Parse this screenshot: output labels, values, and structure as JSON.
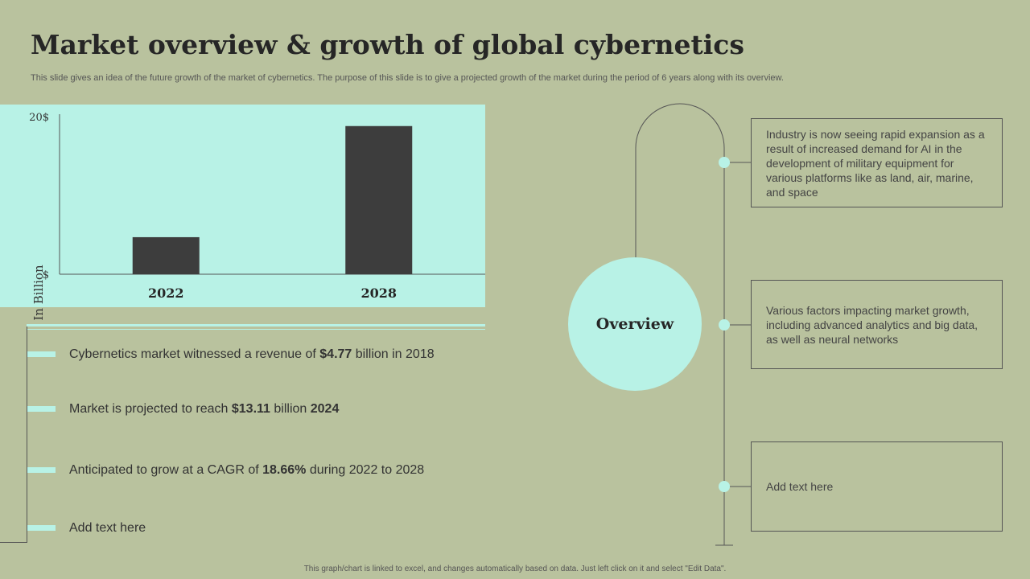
{
  "title": "Market overview & growth of global cybernetics",
  "subtitle": "This slide gives an idea of the future growth of the market of cybernetics. The purpose of this slide is to give a projected growth of the market during the period of 6 years along with its overview.",
  "chart_data": {
    "type": "bar",
    "categories": [
      "2022",
      "2028"
    ],
    "values": [
      4.7,
      18.8
    ],
    "ylabel": "In Billion",
    "ylim": [
      0,
      20
    ],
    "y_tick_labels": [
      "$",
      "20$"
    ],
    "bar_color": "#3d3d3d",
    "background": "#b8f2e6"
  },
  "bullets": [
    {
      "pre": "Cybernetics market witnessed a revenue  of ",
      "bold1": "$4.77",
      "mid": " billion in 2018",
      "bold2": "",
      "post": ""
    },
    {
      "pre": "Market is projected to reach ",
      "bold1": "$13.11",
      "mid": " billion ",
      "bold2": "2024",
      "post": ""
    },
    {
      "pre": " Anticipated to grow at a CAGR of ",
      "bold1": "18.66%",
      "mid": " during 2022 to 2028",
      "bold2": "",
      "post": ""
    },
    {
      "pre": "Add text here",
      "bold1": "",
      "mid": "",
      "bold2": "",
      "post": ""
    }
  ],
  "overview": {
    "label": "Overview",
    "items": [
      "Industry is now seeing rapid expansion as a result of increased demand for AI in the development of military equipment for various platforms like as land, air, marine, and space",
      "Various factors impacting market growth, including advanced analytics and big data, as well as neural networks",
      "Add text here"
    ]
  },
  "footer": "This graph/chart is linked to excel, and changes automatically based on data. Just left click on it and select \"Edit Data\".",
  "colors": {
    "background": "#b9c29e",
    "accent": "#b8f2e6",
    "dark": "#3d3d3d"
  }
}
